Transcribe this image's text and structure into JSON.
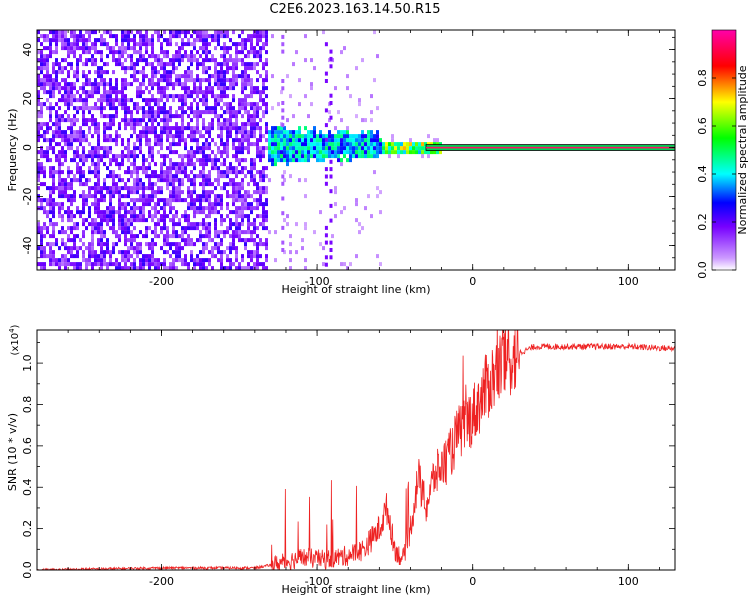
{
  "title": "C2E6.2023.163.14.50.R15",
  "chart_data": [
    {
      "type": "heatmap",
      "xlabel": "Height of straight line (km)",
      "ylabel": "Frequency (Hz)",
      "xlim": [
        -280,
        130
      ],
      "ylim": [
        -50,
        48
      ],
      "xticks": [
        -200,
        -100,
        0,
        100
      ],
      "yticks": [
        -40,
        -20,
        0,
        20,
        40
      ],
      "colorbar": {
        "label": "Normalized spectral amplitude",
        "range": [
          0,
          1
        ],
        "ticks": [
          0.0,
          0.2,
          0.4,
          0.6,
          0.8
        ],
        "colors": [
          "#ffffff",
          "#cc99ff",
          "#7700ff",
          "#0000ff",
          "#00ffff",
          "#00ff00",
          "#ffff00",
          "#ff0000",
          "#ff00aa"
        ]
      },
      "regions": [
        {
          "x": [
            -280,
            -132
          ],
          "f_spread": 48,
          "amplitude": 0.3
        },
        {
          "x": [
            -132,
            -60
          ],
          "f_spread": 6,
          "amplitude": 0.45
        },
        {
          "x": [
            -60,
            -20
          ],
          "f_spread": 2,
          "amplitude": 0.75
        },
        {
          "x": [
            -20,
            130
          ],
          "f_spread": 0.5,
          "amplitude": 0.95
        }
      ]
    },
    {
      "type": "line",
      "xlabel": "Height of straight line (km)",
      "ylabel": "SNR (10 * v/v)",
      "scale_label": "(x10",
      "scale_exp": "4",
      "scale_close": ")",
      "xlim": [
        -280,
        130
      ],
      "ylim": [
        0,
        1.16
      ],
      "xticks": [
        -200,
        -100,
        0,
        100
      ],
      "yticks": [
        0.0,
        0.2,
        0.4,
        0.6,
        0.8,
        1.0
      ],
      "color": "#ee2222",
      "series": [
        {
          "x": [
            -280,
            -200,
            -140,
            -125,
            -110,
            -95,
            -80,
            -70,
            -60,
            -55,
            -50,
            -45,
            -40,
            -35,
            -30,
            -25,
            -20,
            -15,
            -10,
            -5,
            0,
            5,
            10,
            20,
            30,
            40,
            60,
            80,
            100,
            130
          ],
          "y": [
            0.0,
            0.01,
            0.01,
            0.03,
            0.06,
            0.05,
            0.07,
            0.1,
            0.2,
            0.3,
            0.1,
            0.05,
            0.2,
            0.45,
            0.3,
            0.45,
            0.5,
            0.55,
            0.65,
            0.7,
            0.75,
            0.82,
            0.9,
            1.0,
            1.05,
            1.08,
            1.08,
            1.08,
            1.08,
            1.07
          ]
        }
      ]
    }
  ]
}
